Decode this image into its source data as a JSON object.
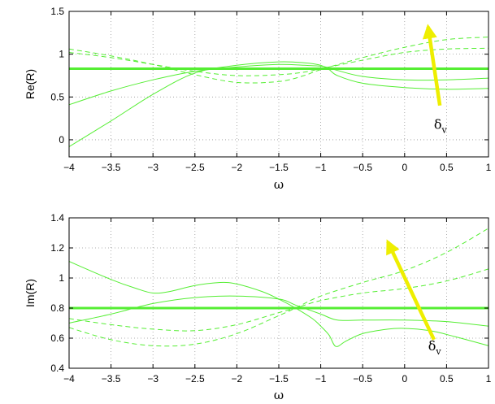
{
  "colors": {
    "curve": "#55ee33",
    "arrow": "#eeee00",
    "grid": "#999999",
    "axes": "#000000"
  },
  "chart_data": [
    {
      "type": "line",
      "xlabel": "ω",
      "ylabel": "Re(R)",
      "xlim": [
        -4,
        1
      ],
      "ylim": [
        -0.2,
        1.5
      ],
      "xticks": [
        -4,
        -3.5,
        -3,
        -2.5,
        -2,
        -1.5,
        -1,
        -0.5,
        0,
        0.5,
        1
      ],
      "xtick_labels": [
        "−4",
        "−3.5",
        "−3",
        "−2.5",
        "−2",
        "−1.5",
        "−1",
        "−0.5",
        "0",
        "0.5",
        "1"
      ],
      "yticks": [
        0,
        0.5,
        1,
        1.5
      ],
      "ytick_labels": [
        "0",
        "0.5",
        "1",
        "1.5"
      ],
      "grid": true,
      "annotation": {
        "text": "δ",
        "subscript": "v",
        "x": 0.35,
        "y": 0.13
      },
      "arrow": {
        "from": [
          0.42,
          0.4
        ],
        "to": [
          0.28,
          1.32
        ]
      },
      "series": [
        {
          "style": "thick",
          "x": [
            -4,
            1
          ],
          "y": [
            0.83,
            0.83
          ]
        },
        {
          "style": "solid",
          "x": [
            -4,
            -3.5,
            -3,
            -2.5,
            -2,
            -1.5,
            -1.2,
            -1,
            -0.9,
            -0.8,
            -0.5,
            0,
            0.5,
            1
          ],
          "y": [
            -0.08,
            0.22,
            0.53,
            0.78,
            0.87,
            0.91,
            0.9,
            0.87,
            0.82,
            0.75,
            0.66,
            0.61,
            0.59,
            0.6
          ]
        },
        {
          "style": "solid",
          "x": [
            -4,
            -3.5,
            -3,
            -2.5,
            -2,
            -1.5,
            -1.2,
            -1,
            -0.9,
            -0.8,
            -0.5,
            0,
            0.5,
            1
          ],
          "y": [
            0.41,
            0.57,
            0.7,
            0.8,
            0.85,
            0.88,
            0.87,
            0.86,
            0.84,
            0.81,
            0.74,
            0.7,
            0.7,
            0.72
          ]
        },
        {
          "style": "dashed",
          "x": [
            -4,
            -3.5,
            -3,
            -2.5,
            -2,
            -1.5,
            -1.2,
            -1,
            -0.5,
            0,
            0.5,
            1
          ],
          "y": [
            1.06,
            0.98,
            0.88,
            0.76,
            0.67,
            0.68,
            0.75,
            0.82,
            0.96,
            1.08,
            1.17,
            1.2
          ]
        },
        {
          "style": "dashed",
          "x": [
            -4,
            -3.5,
            -3,
            -2.5,
            -2,
            -1.5,
            -1.2,
            -1,
            -0.5,
            0,
            0.5,
            1
          ],
          "y": [
            1.02,
            0.96,
            0.88,
            0.8,
            0.75,
            0.76,
            0.79,
            0.83,
            0.93,
            1.02,
            1.06,
            1.07
          ]
        }
      ]
    },
    {
      "type": "line",
      "xlabel": "ω",
      "ylabel": "Im(R)",
      "xlim": [
        -4,
        1
      ],
      "ylim": [
        0.4,
        1.4
      ],
      "xticks": [
        -4,
        -3.5,
        -3,
        -2.5,
        -2,
        -1.5,
        -1,
        -0.5,
        0,
        0.5,
        1
      ],
      "xtick_labels": [
        "−4",
        "−3.5",
        "−3",
        "−2.5",
        "−2",
        "−1.5",
        "−1",
        "−0.5",
        "0",
        "0.5",
        "1"
      ],
      "yticks": [
        0.4,
        0.6,
        0.8,
        1,
        1.2,
        1.4
      ],
      "ytick_labels": [
        "0.4",
        "0.6",
        "0.8",
        "1",
        "1.2",
        "1.4"
      ],
      "grid": true,
      "annotation": {
        "text": "δ",
        "subscript": "v",
        "x": 0.28,
        "y": 0.52
      },
      "arrow": {
        "from": [
          0.35,
          0.59
        ],
        "to": [
          -0.2,
          1.24
        ]
      },
      "series": [
        {
          "style": "thick",
          "x": [
            -4,
            1
          ],
          "y": [
            0.8,
            0.8
          ]
        },
        {
          "style": "solid",
          "x": [
            -4,
            -3.5,
            -3.2,
            -3,
            -2.8,
            -2.5,
            -2.2,
            -2,
            -1.7,
            -1.5,
            -1.3,
            -1.1,
            -1,
            -0.9,
            -0.82,
            -0.7,
            -0.5,
            -0.2,
            0,
            0.3,
            0.6,
            1
          ],
          "y": [
            1.11,
            0.99,
            0.93,
            0.9,
            0.91,
            0.95,
            0.97,
            0.96,
            0.91,
            0.86,
            0.8,
            0.73,
            0.68,
            0.62,
            0.545,
            0.58,
            0.63,
            0.66,
            0.665,
            0.65,
            0.61,
            0.55
          ]
        },
        {
          "style": "solid",
          "x": [
            -4,
            -3.5,
            -3,
            -2.5,
            -2,
            -1.5,
            -1.3,
            -1,
            -0.8,
            -0.5,
            0,
            0.5,
            1
          ],
          "y": [
            0.7,
            0.76,
            0.83,
            0.87,
            0.88,
            0.86,
            0.82,
            0.76,
            0.72,
            0.72,
            0.72,
            0.71,
            0.68
          ]
        },
        {
          "style": "dashed",
          "x": [
            -4,
            -3.5,
            -3,
            -2.5,
            -2,
            -1.5,
            -1.3,
            -1,
            -0.5,
            0,
            0.5,
            1
          ],
          "y": [
            0.67,
            0.59,
            0.55,
            0.56,
            0.63,
            0.75,
            0.8,
            0.88,
            0.97,
            1.05,
            1.17,
            1.33
          ]
        },
        {
          "style": "dashed",
          "x": [
            -4,
            -3.5,
            -3,
            -2.5,
            -2,
            -1.5,
            -1.3,
            -1,
            -0.5,
            0,
            0.5,
            1
          ],
          "y": [
            0.73,
            0.69,
            0.66,
            0.65,
            0.69,
            0.77,
            0.8,
            0.85,
            0.9,
            0.93,
            0.98,
            1.06
          ]
        }
      ]
    }
  ]
}
